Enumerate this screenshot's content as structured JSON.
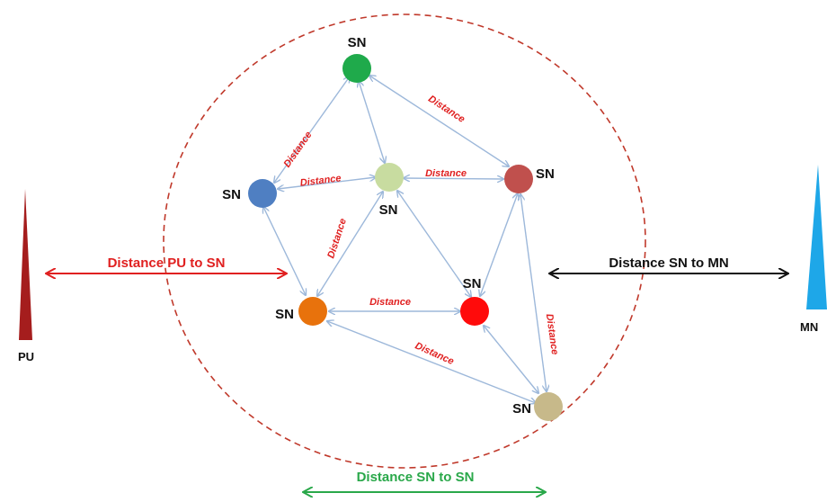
{
  "colors": {
    "boundary": "#c0392b",
    "edge": "#9db8da",
    "edge_label": "#e02020",
    "pu_arrow": "#e02020",
    "mn_arrow": "#111111",
    "sn_arrow": "#2aa84a",
    "pu": "#a51d1d",
    "mn": "#1ea7e8"
  },
  "nodes": {
    "top": {
      "label": "SN",
      "color": "#1faa4b"
    },
    "left": {
      "label": "SN",
      "color": "#4f7fc2"
    },
    "center": {
      "label": "SN",
      "color": "#c8dca0"
    },
    "right": {
      "label": "SN",
      "color": "#c0504d"
    },
    "orange": {
      "label": "SN",
      "color": "#e8720c"
    },
    "red": {
      "label": "SN",
      "color": "#ff0b0b"
    },
    "bottom": {
      "label": "SN",
      "color": "#c7b98a"
    }
  },
  "edge_label": "Distance",
  "arrows": {
    "pu_to_sn": "Distance PU to SN",
    "sn_to_mn": "Distance SN to MN",
    "sn_to_sn": "Distance SN to SN"
  },
  "pu_label": "PU",
  "mn_label": "MN"
}
